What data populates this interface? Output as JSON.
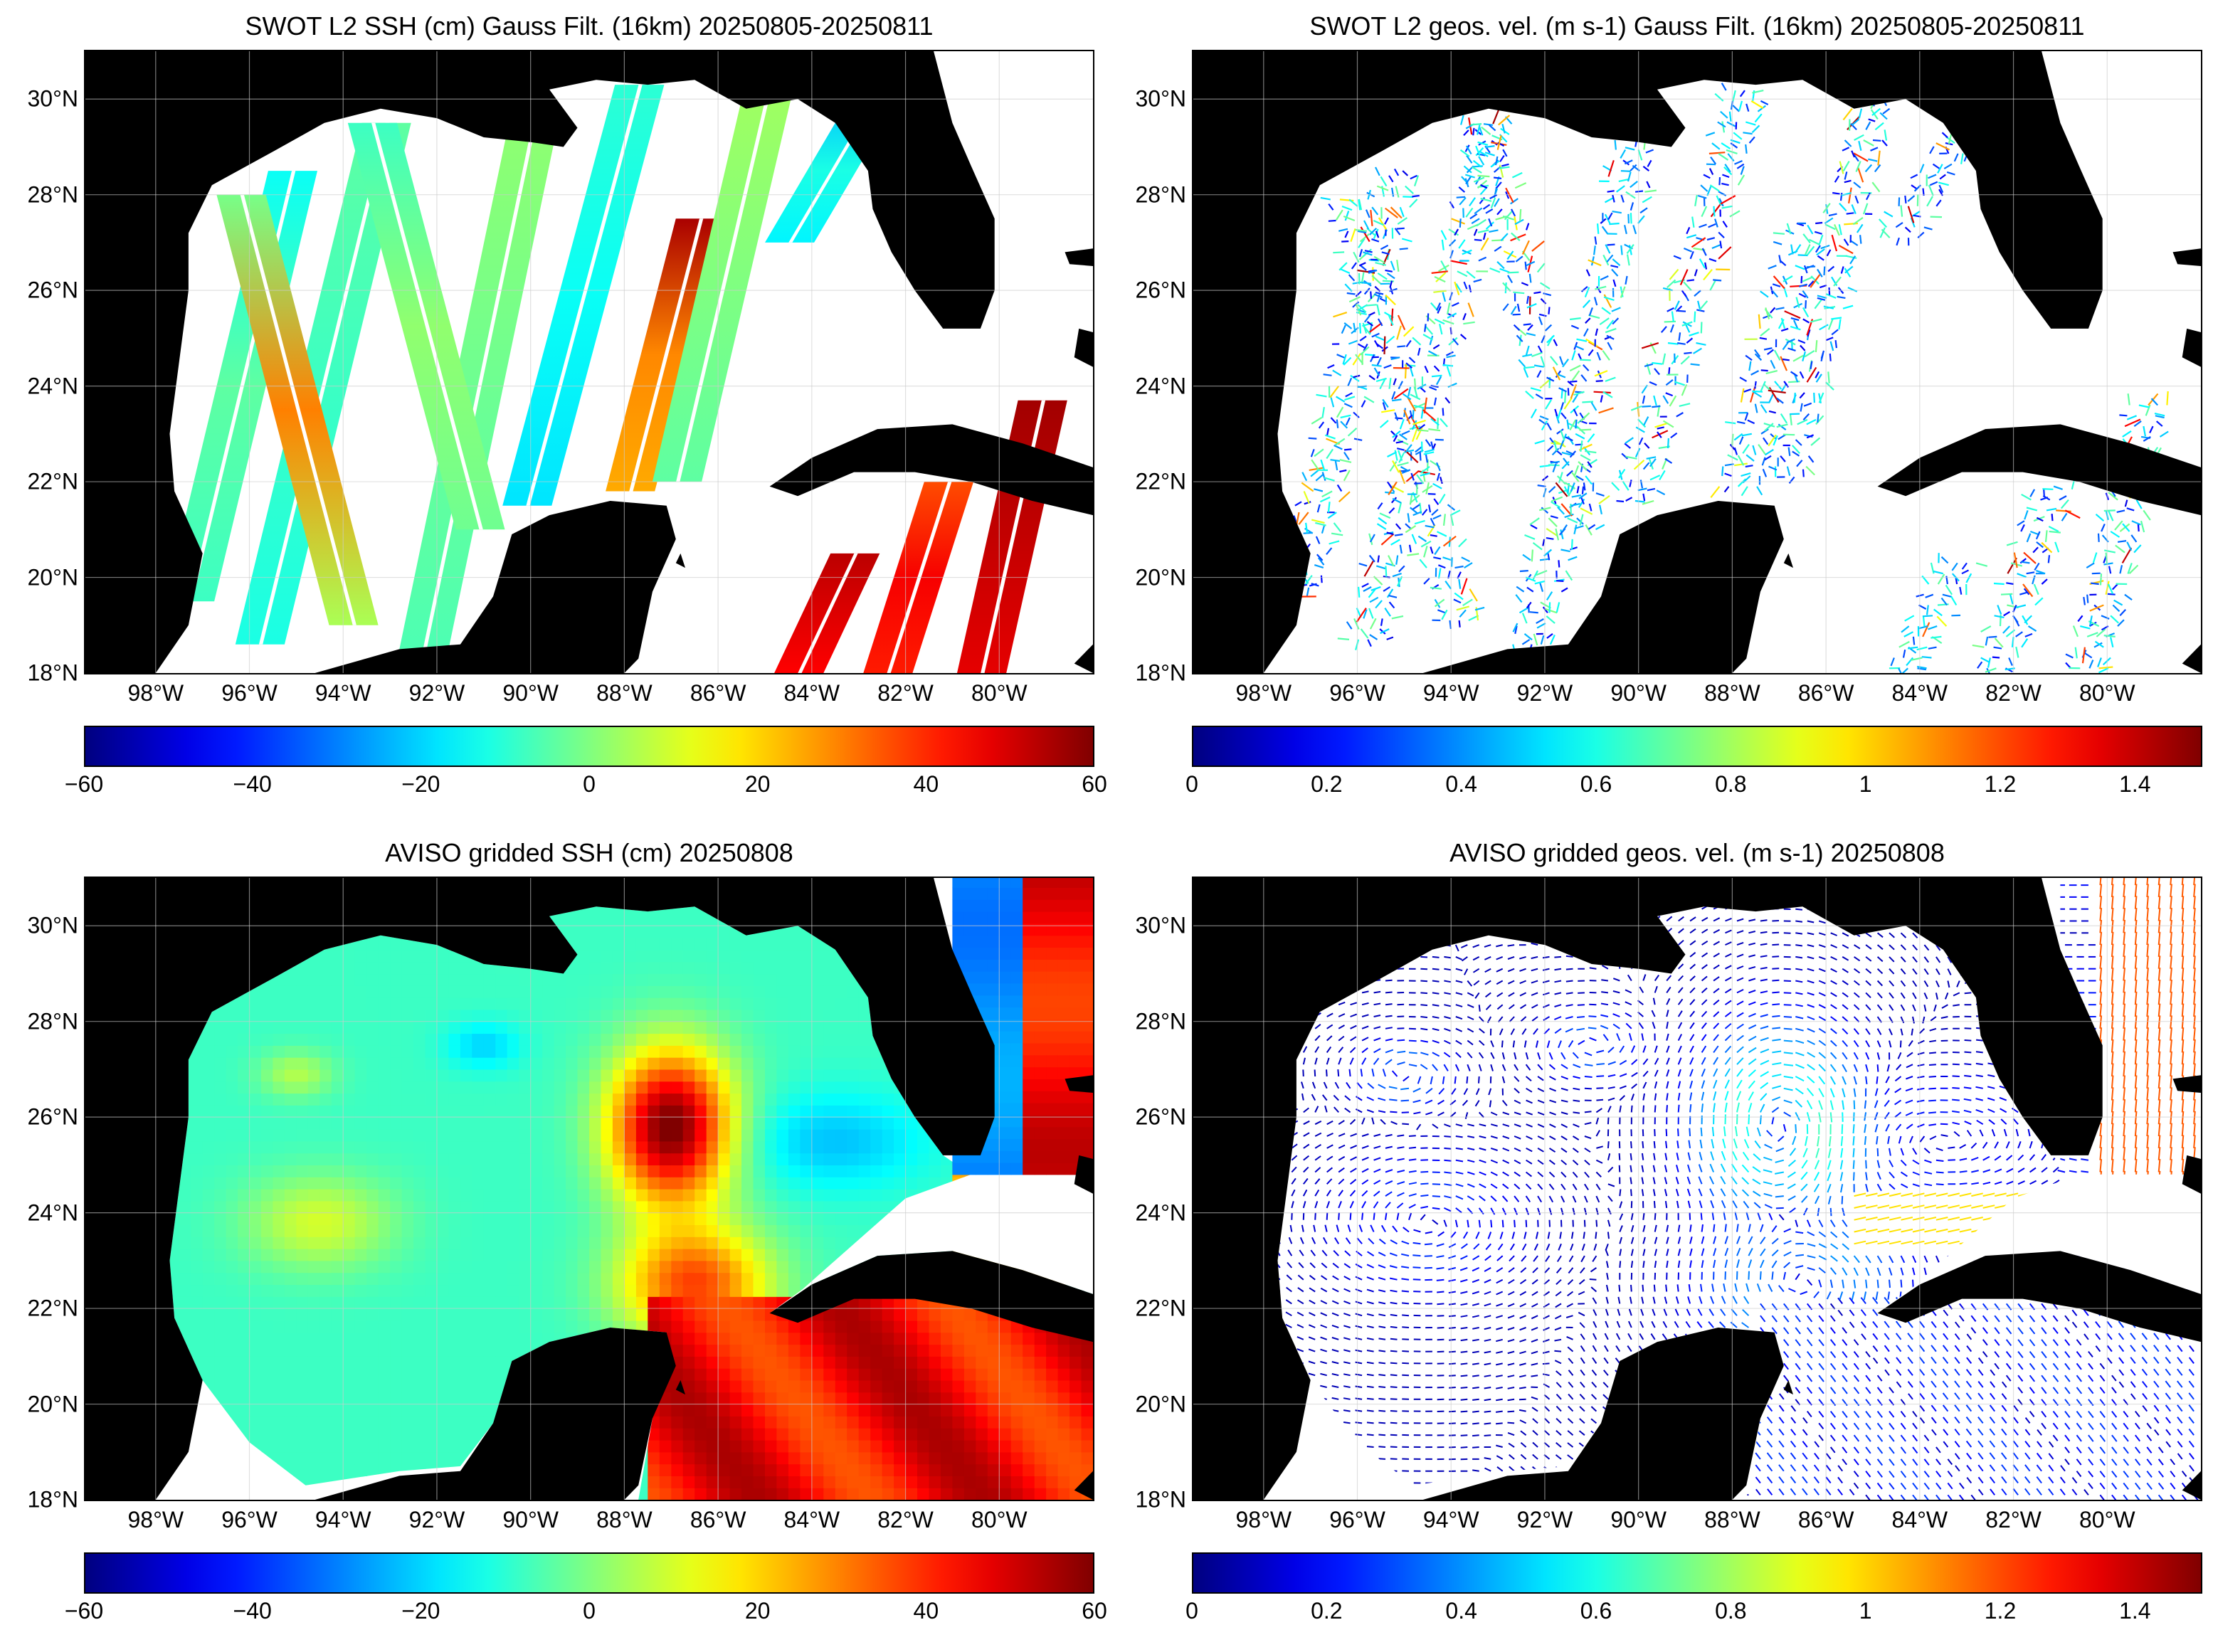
{
  "panels": [
    {
      "id": "p1",
      "title": "SWOT L2 SSH (cm) Gauss Filt. (16km) 20250805-20250811",
      "field": "SSH",
      "units": "cm",
      "kind": "swath-ssh",
      "colorbar": {
        "min": -60,
        "max": 60,
        "ticks": [
          "−60",
          "−40",
          "−20",
          "0",
          "20",
          "40",
          "60"
        ]
      }
    },
    {
      "id": "p2",
      "title": "SWOT L2 geos. vel. (m s-1) Gauss Filt. (16km) 20250805-20250811",
      "field": "geostrophic velocity",
      "units": "m s-1",
      "kind": "swath-vel",
      "colorbar": {
        "min": 0,
        "max": 1.5,
        "ticks": [
          "0",
          "0.2",
          "0.4",
          "0.6",
          "0.8",
          "1",
          "1.2",
          "1.4"
        ]
      }
    },
    {
      "id": "p3",
      "title": "AVISO gridded SSH (cm) 20250808",
      "field": "SSH",
      "units": "cm",
      "kind": "grid-ssh",
      "colorbar": {
        "min": -60,
        "max": 60,
        "ticks": [
          "−60",
          "−40",
          "−20",
          "0",
          "20",
          "40",
          "60"
        ]
      }
    },
    {
      "id": "p4",
      "title": "AVISO gridded geos. vel. (m s-1)  20250808",
      "field": "geostrophic velocity",
      "units": "m s-1",
      "kind": "grid-vel",
      "colorbar": {
        "min": 0,
        "max": 1.5,
        "ticks": [
          "0",
          "0.2",
          "0.4",
          "0.6",
          "0.8",
          "1",
          "1.2",
          "1.4"
        ]
      }
    }
  ],
  "map": {
    "lon_range": [
      -99.5,
      -78.0
    ],
    "lat_range": [
      18.0,
      31.0
    ],
    "lon_ticks": [
      "98°W",
      "96°W",
      "94°W",
      "92°W",
      "90°W",
      "88°W",
      "86°W",
      "84°W",
      "82°W",
      "80°W"
    ],
    "lat_ticks": [
      "18°N",
      "20°N",
      "22°N",
      "24°N",
      "26°N",
      "28°N",
      "30°N"
    ],
    "land_color": "#000000",
    "grid": true,
    "colormap": "jet"
  },
  "colors": {
    "land": "#000000",
    "ocean_missing": "#ffffff",
    "grid": "#cccccc"
  }
}
